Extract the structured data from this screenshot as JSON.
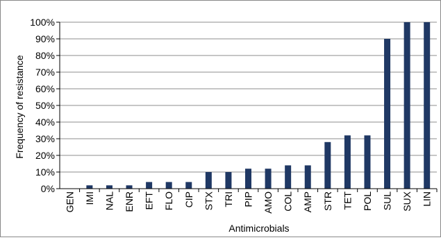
{
  "chart_data": {
    "type": "bar",
    "xlabel": "Antimicrobials",
    "ylabel": "Frequency of resistance",
    "ylim": [
      0,
      100
    ],
    "yticks": [
      "0%",
      "10%",
      "20%",
      "30%",
      "40%",
      "50%",
      "60%",
      "70%",
      "80%",
      "90%",
      "100%"
    ],
    "categories": [
      "GEN",
      "IMI",
      "NAL",
      "ENR",
      "EFT",
      "FLO",
      "CIP",
      "STX",
      "TRI",
      "PIP",
      "AMO",
      "COL",
      "AMP",
      "STR",
      "TET",
      "POL",
      "SUL",
      "SUX",
      "LIN"
    ],
    "values": [
      0,
      2,
      2,
      2,
      4,
      4,
      4,
      10,
      10,
      12,
      12,
      14,
      14,
      28,
      32,
      32,
      90,
      100,
      100
    ],
    "grid": true,
    "bar_color": "#1f3864",
    "grid_color": "#8c8c8c"
  }
}
